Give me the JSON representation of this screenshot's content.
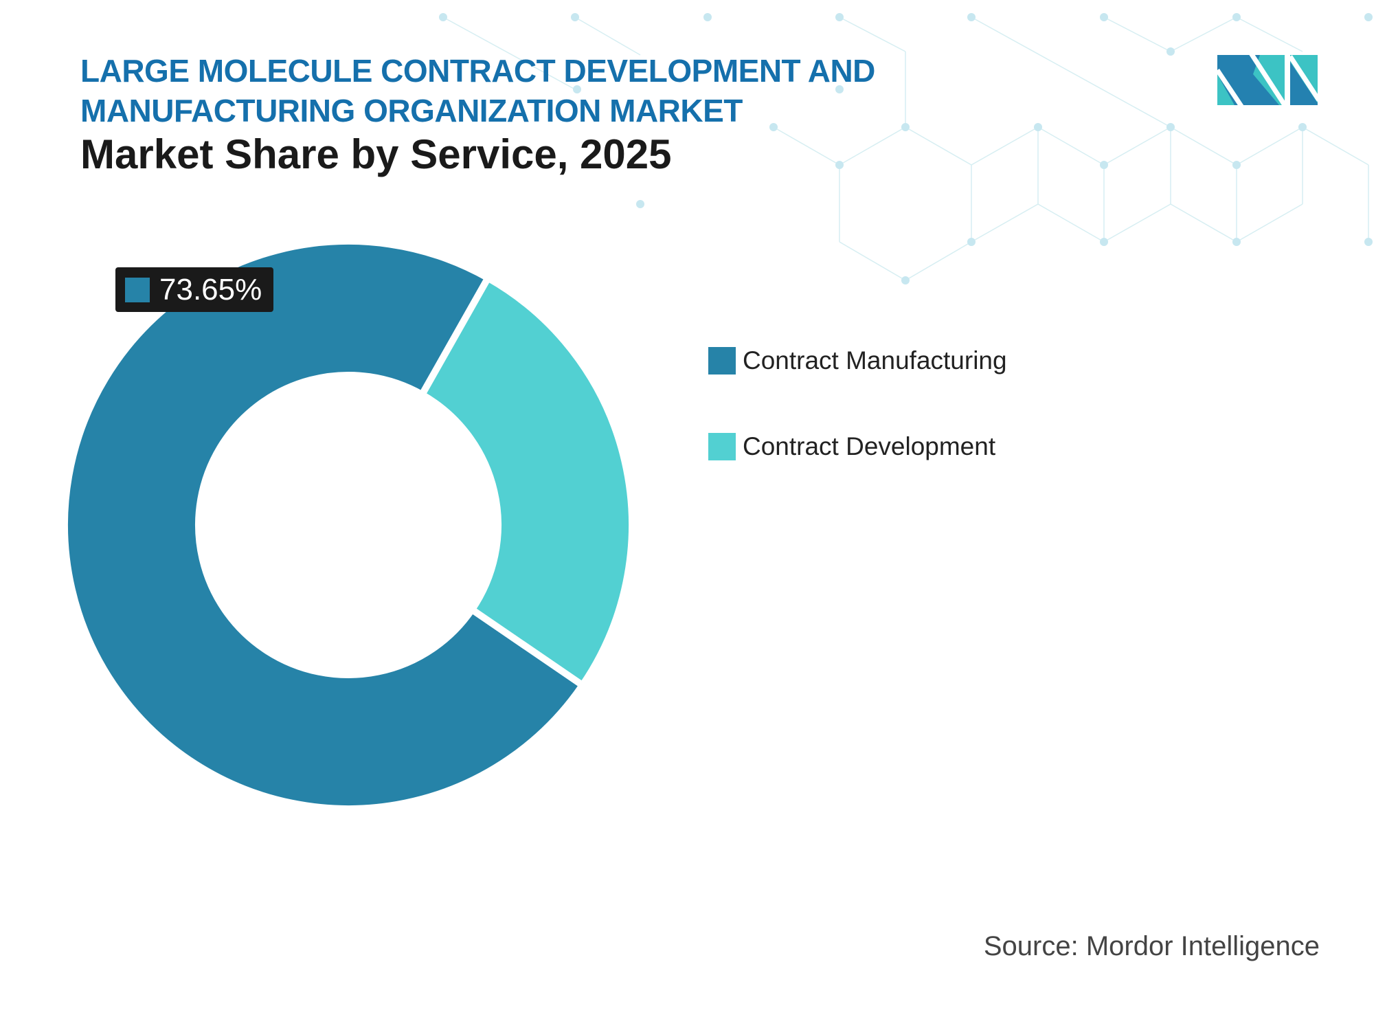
{
  "header": {
    "title_line1": "LARGE MOLECULE CONTRACT DEVELOPMENT AND",
    "title_line2": "MANUFACTURING ORGANIZATION MARKET",
    "subtitle": "Market Share by Service, 2025"
  },
  "logo": {
    "name": "mordor-intelligence-logo",
    "colors": [
      "#2481b0",
      "#3cc3c4"
    ]
  },
  "chart_data": {
    "type": "pie",
    "donut": true,
    "title": "Market Share by Service, 2025",
    "series": [
      {
        "name": "Contract Manufacturing",
        "value": 73.65,
        "color": "#2683a8"
      },
      {
        "name": "Contract Development",
        "value": 26.35,
        "color": "#52d0d2"
      }
    ],
    "data_label": "73.65%",
    "legend": "right"
  },
  "source": "Source: Mordor Intelligence"
}
